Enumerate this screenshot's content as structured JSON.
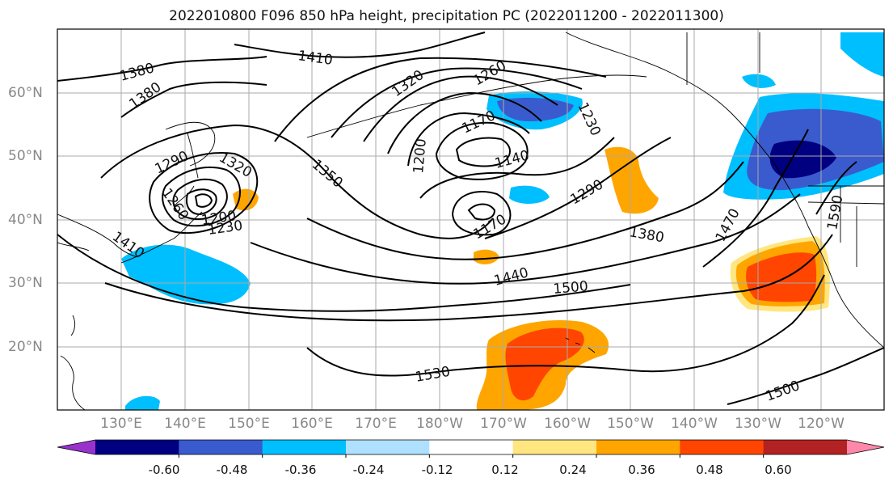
{
  "title": "2022010800 F096 850 hPa height, precipitation PC (2022011200 - 2022011300)",
  "lat_labels": [
    "60°N",
    "50°N",
    "40°N",
    "30°N",
    "20°N"
  ],
  "lon_labels": [
    "130°E",
    "140°E",
    "150°E",
    "160°E",
    "170°E",
    "180°W",
    "170°W",
    "160°W",
    "150°W",
    "140°W",
    "130°W",
    "120°W"
  ],
  "contour_labels": [
    "1380",
    "1380",
    "1410",
    "1320",
    "1260",
    "1290",
    "1320",
    "1350",
    "1170",
    "1230",
    "1200",
    "1140",
    "1290",
    "1260",
    "1200",
    "1230",
    "1410",
    "1170",
    "1380",
    "1440",
    "1500",
    "1470",
    "1590",
    "1530",
    "1500"
  ],
  "colorbar": {
    "ticks": [
      "-0.60",
      "-0.48",
      "-0.36",
      "-0.24",
      "-0.12",
      "0.12",
      "0.24",
      "0.36",
      "0.48",
      "0.60"
    ],
    "colors": [
      "#9932CC",
      "#000080",
      "#3A5BCD",
      "#00BFFF",
      "#B0E0FF",
      "#FFFFFF",
      "#FFE680",
      "#FFA500",
      "#FF4500",
      "#B22222",
      "#FF88AA"
    ]
  }
}
